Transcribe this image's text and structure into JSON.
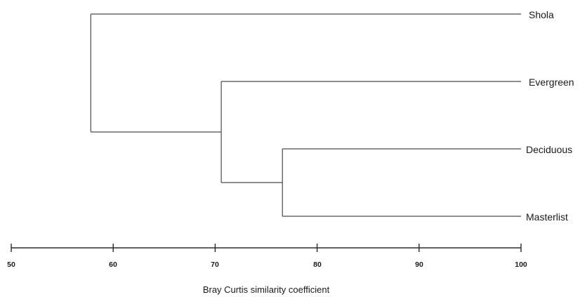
{
  "chart_data": {
    "type": "dendrogram",
    "title": "",
    "xlabel": "Bray Curtis similarity coefficient",
    "xlim": [
      50,
      100
    ],
    "x_ticks": [
      "50",
      "60",
      "70",
      "80",
      "90",
      "100"
    ],
    "leaves": [
      "Shola",
      "Evergreen",
      "Deciduous",
      "Masterlist"
    ],
    "merges": [
      {
        "members": [
          "Deciduous",
          "Masterlist"
        ],
        "similarity": 76.6
      },
      {
        "members": [
          "Evergreen",
          "Deciduous + Masterlist"
        ],
        "similarity": 70.6
      },
      {
        "members": [
          "Shola",
          "Evergreen + Deciduous + Masterlist"
        ],
        "similarity": 57.8
      }
    ]
  }
}
